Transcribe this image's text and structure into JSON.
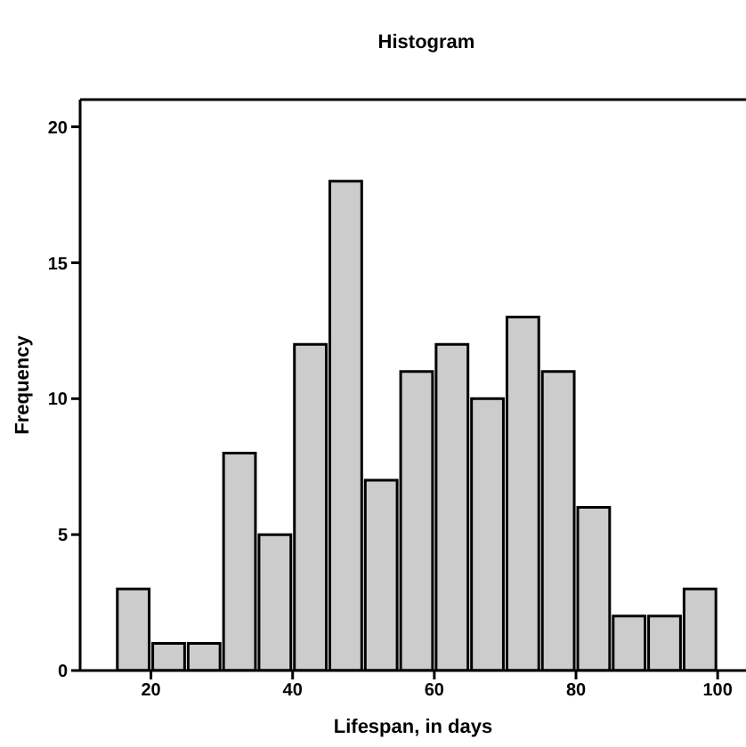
{
  "chart_data": {
    "type": "histogram",
    "title": "Histogram",
    "xlabel": "Lifespan, in days",
    "ylabel": "Frequency",
    "bins": [
      15,
      20,
      25,
      30,
      35,
      40,
      45,
      50,
      55,
      60,
      65,
      70,
      75,
      80,
      85,
      90,
      95,
      100
    ],
    "values": [
      3,
      1,
      1,
      8,
      5,
      12,
      18,
      7,
      11,
      12,
      10,
      13,
      11,
      6,
      2,
      2,
      3
    ],
    "color": "#cccccc",
    "xlim": [
      10,
      104
    ],
    "xticks": [
      20,
      40,
      60,
      80,
      100
    ],
    "ylim": [
      0,
      21
    ],
    "yticks": [
      0,
      5,
      10,
      15,
      20
    ],
    "grid": false
  }
}
